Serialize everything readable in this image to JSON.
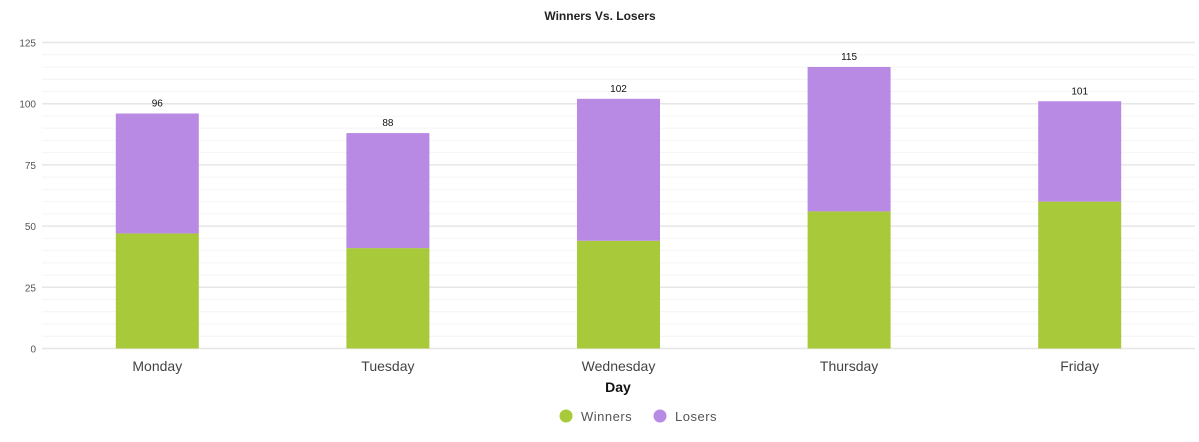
{
  "chart_data": {
    "type": "bar",
    "stacked": true,
    "title": "Winners Vs. Losers",
    "xlabel": "Day",
    "ylabel": "",
    "categories": [
      "Monday",
      "Tuesday",
      "Wednesday",
      "Thursday",
      "Friday"
    ],
    "series": [
      {
        "name": "Winners",
        "color": "#a8c93a",
        "values": [
          47,
          41,
          44,
          56,
          60
        ]
      },
      {
        "name": "Losers",
        "color": "#b98ae3",
        "values": [
          49,
          47,
          58,
          59,
          41
        ]
      }
    ],
    "totals": [
      96,
      88,
      102,
      115,
      101
    ],
    "ylim": [
      0,
      125
    ],
    "yticks": [
      0,
      25,
      50,
      75,
      100,
      125
    ],
    "grid": true,
    "legend": "bottom-center"
  }
}
